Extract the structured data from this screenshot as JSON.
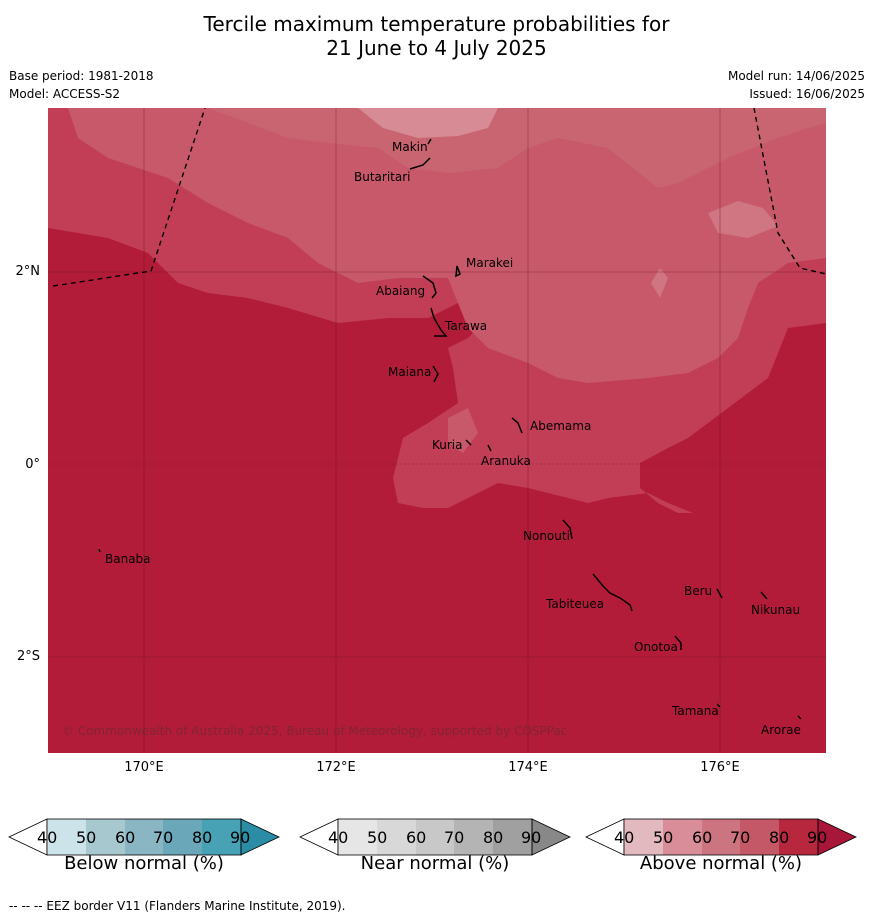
{
  "title_line1": "Tercile maximum temperature probabilities for",
  "title_line2": "21 June to 4 July 2025",
  "base_period": "Base period: 1981-2018",
  "model": "Model: ACCESS-S2",
  "model_run": "Model run: 14/06/2025",
  "issued": "Issued: 16/06/2025",
  "copyright": "© Commonwealth of Australia 2025, Bureau of Meteorology, supported by COSPPac",
  "footer": "--  --  -- EEZ border V11 (Flanders Marine Institute, 2019).",
  "axes": {
    "lat_labels": [
      "2°N",
      "0°",
      "2°S"
    ],
    "lon_labels": [
      "170°E",
      "172°E",
      "174°E",
      "176°E"
    ]
  },
  "places": [
    "Makin",
    "Butaritari",
    "Marakei",
    "Abaiang",
    "Tarawa",
    "Maiana",
    "Abemama",
    "Kuria",
    "Aranuka",
    "Nonouti",
    "Banaba",
    "Beru",
    "Nikunau",
    "Tabiteuea",
    "Onotoa",
    "Tamana",
    "Arorae"
  ],
  "legends": [
    {
      "title": "Below normal (%)",
      "ticks": [
        "40",
        "50",
        "60",
        "70",
        "80",
        "90"
      ],
      "colors": [
        "#cde3ea",
        "#a8c8d0",
        "#8ab5c2",
        "#6aa8b9",
        "#46a2b4",
        "#2a8da5"
      ]
    },
    {
      "title": "Near normal (%)",
      "ticks": [
        "40",
        "50",
        "60",
        "70",
        "80",
        "90"
      ],
      "colors": [
        "#e6e6e6",
        "#d8d8d8",
        "#c8c8c8",
        "#b4b4b4",
        "#a0a0a0",
        "#888888"
      ]
    },
    {
      "title": "Above normal (%)",
      "ticks": [
        "40",
        "50",
        "60",
        "70",
        "80",
        "90"
      ],
      "colors": [
        "#e3b9c0",
        "#d88d99",
        "#cc7480",
        "#c45867",
        "#b7283f",
        "#a8163a"
      ]
    }
  ],
  "colors": {
    "above_50_60": "#d88d99",
    "above_60_70": "#cc7480",
    "above_70_80": "#c45867",
    "above_80_90": "#b71c3a"
  }
}
